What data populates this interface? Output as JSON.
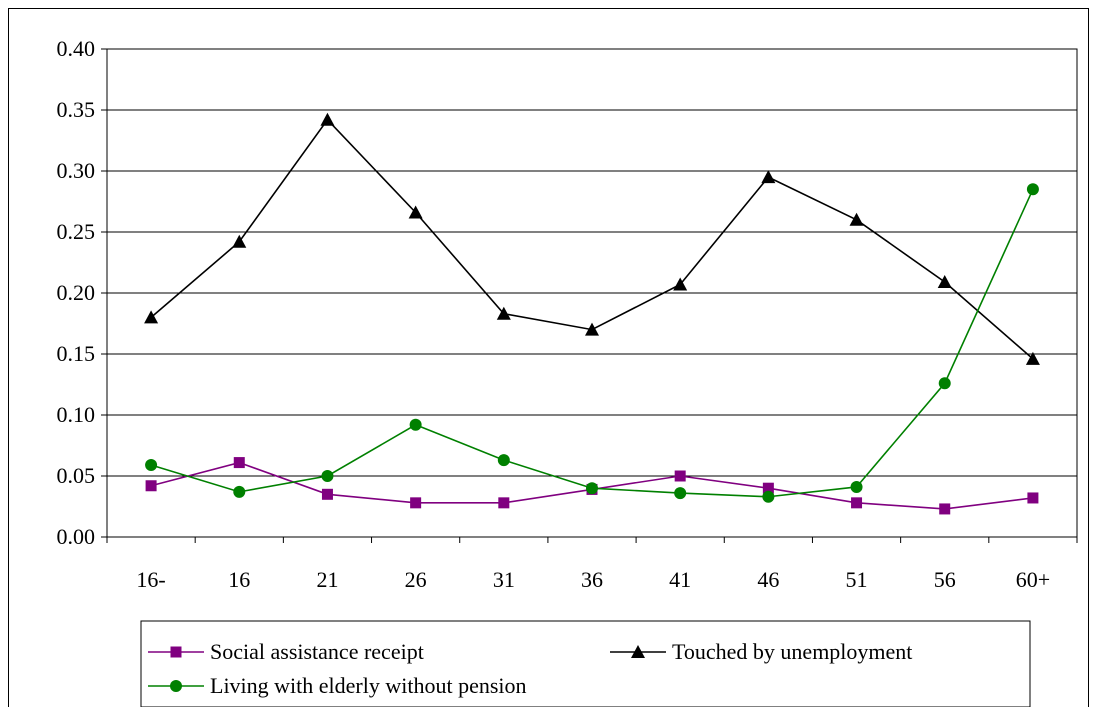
{
  "chart_data": {
    "type": "line",
    "categories": [
      "16-",
      "16",
      "21",
      "26",
      "31",
      "36",
      "41",
      "46",
      "51",
      "56",
      "60+"
    ],
    "ylim": [
      0,
      0.4
    ],
    "yticks": [
      "0.00",
      "0.05",
      "0.10",
      "0.15",
      "0.20",
      "0.25",
      "0.30",
      "0.35",
      "0.40"
    ],
    "grid": true,
    "legend_position": "bottom",
    "series": [
      {
        "name": "Social assistance receipt",
        "color": "#800080",
        "marker": "square",
        "values": [
          0.042,
          0.061,
          0.035,
          0.028,
          0.028,
          0.039,
          0.05,
          0.04,
          0.028,
          0.023,
          0.032
        ]
      },
      {
        "name": "Touched by unemployment",
        "color": "#000000",
        "marker": "triangle",
        "values": [
          0.18,
          0.242,
          0.342,
          0.266,
          0.183,
          0.17,
          0.207,
          0.295,
          0.26,
          0.209,
          0.146
        ]
      },
      {
        "name": "Living with elderly without pension",
        "color": "#008000",
        "marker": "circle",
        "values": [
          0.059,
          0.037,
          0.05,
          0.092,
          0.063,
          0.04,
          0.036,
          0.033,
          0.041,
          0.126,
          0.285
        ]
      }
    ]
  }
}
